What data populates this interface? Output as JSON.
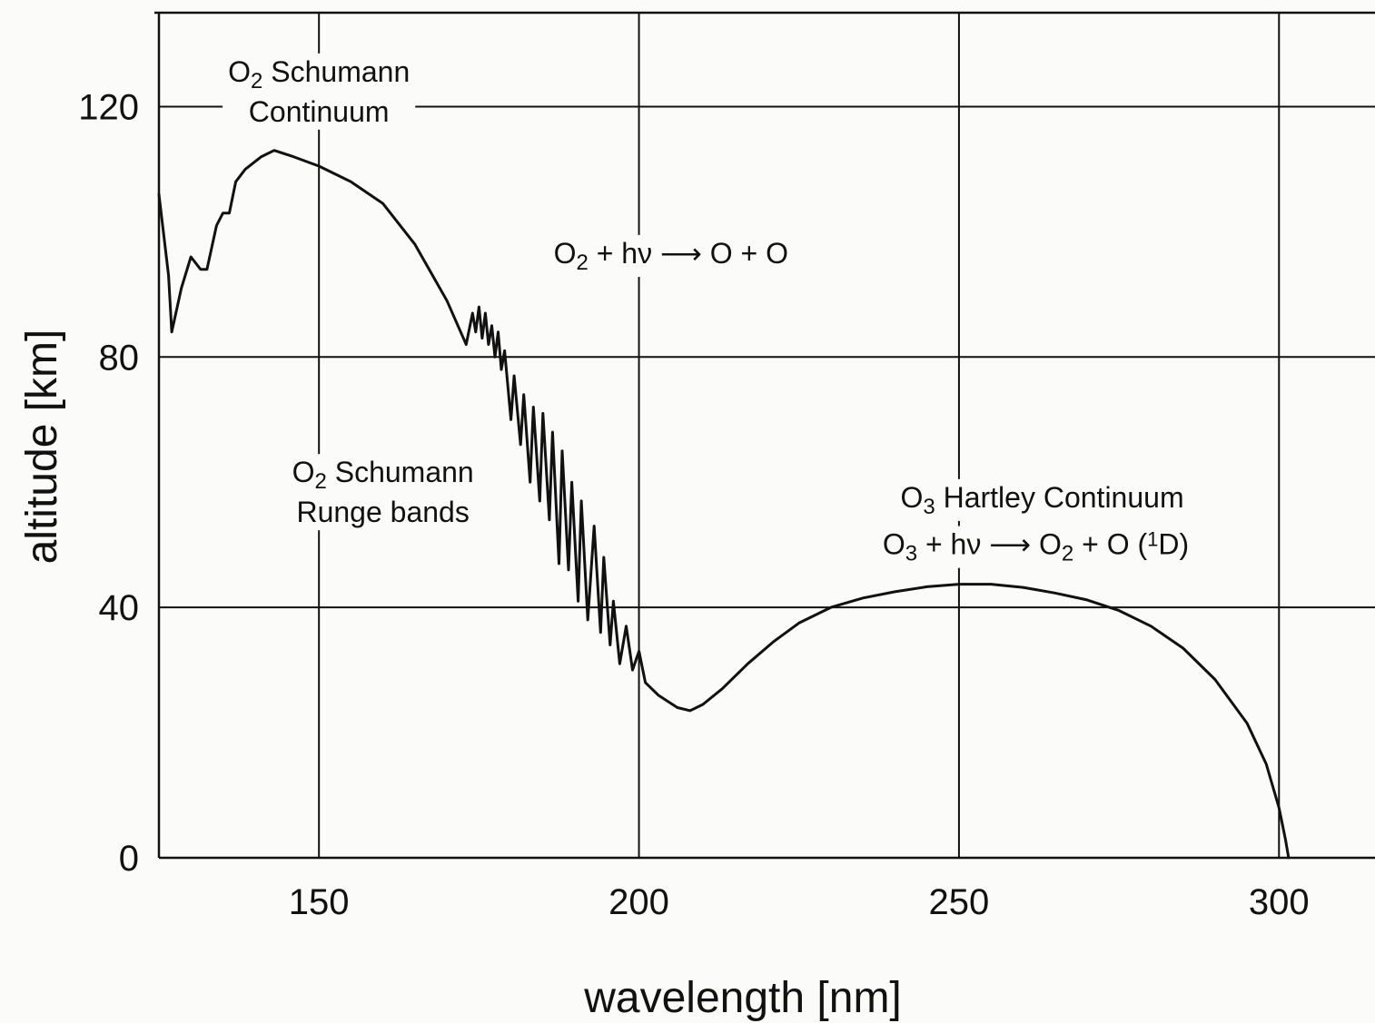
{
  "chart_data": {
    "type": "line",
    "xlabel": "wavelength [nm]",
    "ylabel": "altitude [km]",
    "xlim": [
      125,
      315
    ],
    "ylim": [
      0,
      135
    ],
    "x_ticks": [
      150,
      200,
      250,
      300
    ],
    "y_ticks": [
      0,
      40,
      80,
      120
    ],
    "grid": true,
    "series": [
      {
        "points": [
          [
            125,
            106
          ],
          [
            126.5,
            93
          ],
          [
            127,
            84
          ],
          [
            128.5,
            91
          ],
          [
            130,
            96
          ],
          [
            131.5,
            94
          ],
          [
            132.5,
            94
          ],
          [
            134,
            101
          ],
          [
            135,
            103
          ],
          [
            136,
            103
          ],
          [
            137,
            108
          ],
          [
            138.5,
            110
          ],
          [
            141,
            112
          ],
          [
            143,
            113
          ],
          [
            146,
            112
          ],
          [
            150,
            110.5
          ],
          [
            155,
            108
          ],
          [
            160,
            104.5
          ],
          [
            165,
            98
          ],
          [
            170,
            89
          ],
          [
            173,
            82
          ],
          [
            174,
            87
          ],
          [
            174.5,
            84
          ],
          [
            175,
            88
          ],
          [
            175.5,
            83
          ],
          [
            176,
            87
          ],
          [
            176.5,
            82
          ],
          [
            177,
            85
          ],
          [
            177.5,
            80
          ],
          [
            178,
            84
          ],
          [
            178.5,
            78
          ],
          [
            179,
            81
          ],
          [
            180,
            70
          ],
          [
            180.5,
            77
          ],
          [
            181.5,
            66
          ],
          [
            182,
            74
          ],
          [
            183,
            60
          ],
          [
            183.5,
            72
          ],
          [
            184.5,
            57
          ],
          [
            185,
            71
          ],
          [
            186,
            54
          ],
          [
            186.5,
            68
          ],
          [
            187.5,
            47
          ],
          [
            188,
            65
          ],
          [
            189,
            46
          ],
          [
            189.5,
            60
          ],
          [
            190.5,
            41
          ],
          [
            191,
            57
          ],
          [
            192,
            38
          ],
          [
            193,
            53
          ],
          [
            194,
            36
          ],
          [
            194.5,
            48
          ],
          [
            195.5,
            34
          ],
          [
            196,
            41
          ],
          [
            197,
            31
          ],
          [
            198,
            37
          ],
          [
            199,
            30
          ],
          [
            200,
            33
          ],
          [
            201,
            28
          ],
          [
            203,
            26
          ],
          [
            206,
            24
          ],
          [
            208,
            23.5
          ],
          [
            210,
            24.5
          ],
          [
            213,
            27
          ],
          [
            217,
            31
          ],
          [
            221,
            34.5
          ],
          [
            225,
            37.5
          ],
          [
            230,
            40
          ],
          [
            235,
            41.5
          ],
          [
            240,
            42.5
          ],
          [
            245,
            43.3
          ],
          [
            250,
            43.7
          ],
          [
            255,
            43.7
          ],
          [
            260,
            43.2
          ],
          [
            265,
            42.3
          ],
          [
            270,
            41.2
          ],
          [
            275,
            39.5
          ],
          [
            280,
            37
          ],
          [
            285,
            33.5
          ],
          [
            290,
            28.5
          ],
          [
            295,
            21.5
          ],
          [
            298,
            15
          ],
          [
            300,
            8
          ],
          [
            301,
            3
          ],
          [
            301.5,
            0
          ]
        ]
      }
    ],
    "annotations": [
      {
        "line1": "O",
        "sub1": "2",
        "rest1": " Schumann",
        "line2": "Continuum",
        "x": 150,
        "y": 124
      },
      {
        "line1": "O",
        "sub1": "2",
        "rest1": " + hν ⟶ O + O",
        "x": 205,
        "y": 95
      },
      {
        "line1": "O",
        "sub1": "2",
        "rest1": " Schumann",
        "line2": "Runge bands",
        "x": 160,
        "y": 60
      },
      {
        "line1": "O",
        "sub1": "3",
        "rest1": " Hartley Continuum",
        "x": 263,
        "y": 56
      },
      {
        "line1": "O",
        "sub1": "3",
        "rest1": " + hν ⟶ O",
        "sub2": "2",
        "rest2": " + O (",
        "sup": "1",
        "rest3": "D)",
        "x": 262,
        "y": 48.5
      }
    ]
  }
}
